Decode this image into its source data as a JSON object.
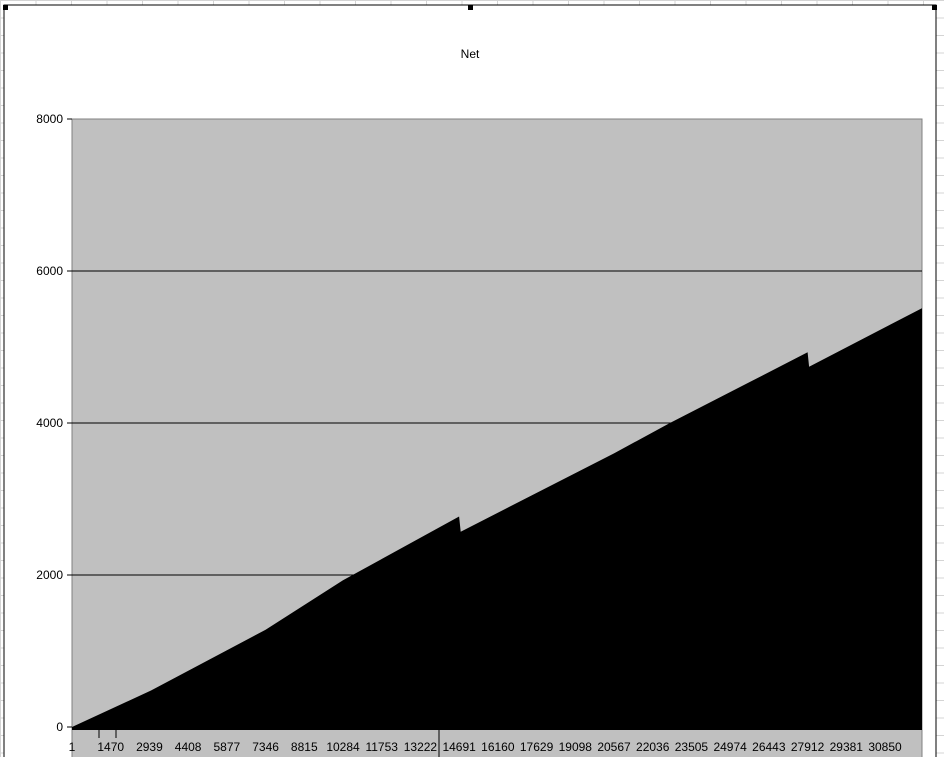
{
  "chart_data": {
    "type": "area",
    "title": "Net",
    "xlabel": "",
    "ylabel": "",
    "ylim": [
      0,
      8000
    ],
    "yticks": [
      "0",
      "2000",
      "4000",
      "6000",
      "8000"
    ],
    "xticks": [
      "1",
      "1470",
      "2939",
      "4408",
      "5877",
      "7346",
      "8815",
      "10284",
      "11753",
      "13222",
      "14691",
      "16160",
      "17629",
      "19098",
      "20567",
      "22036",
      "23505",
      "24974",
      "26443",
      "27912",
      "29381",
      "30850"
    ],
    "xlim": [
      1,
      32250
    ],
    "grid": "horizontal major gridlines",
    "legend": "none",
    "colors": {
      "plot_background": "#c0c0c0",
      "series_fill": "#000000"
    },
    "series": [
      {
        "x": [
          1,
          3000,
          7346,
          10284,
          14691,
          14750,
          20567,
          22690,
          27912,
          27970,
          32250
        ],
        "y": [
          0,
          480,
          1280,
          1930,
          2770,
          2570,
          3600,
          4000,
          4930,
          4740,
          5510
        ]
      }
    ]
  }
}
